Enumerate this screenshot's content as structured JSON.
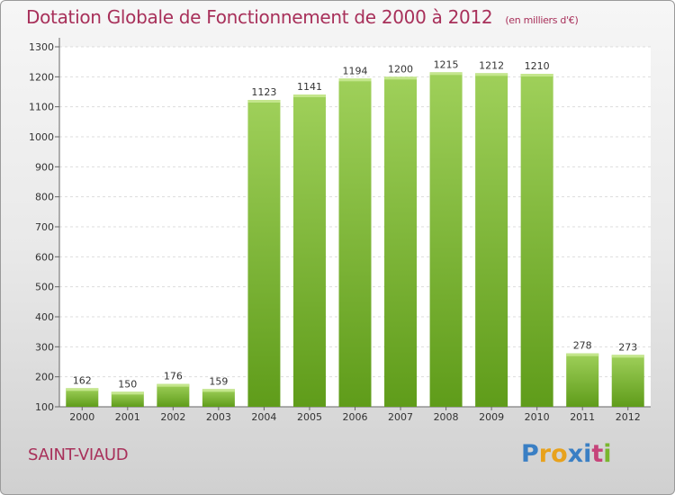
{
  "title": "Dotation Globale de Fonctionnement de 2000 à 2012",
  "unit": "(en milliers d'€)",
  "commune": "SAINT-VIAUD",
  "logo": {
    "text": "Proxiti",
    "colors": [
      "#3a7fc4",
      "#e8a21c",
      "#e8a21c",
      "#3a7fc4",
      "#3a7fc4",
      "#c6447a",
      "#7ab62e"
    ]
  },
  "colors": {
    "title": "#a8305a",
    "bar_top": "#9fd05a",
    "bar_bottom": "#5f9c1a"
  },
  "chart_data": {
    "type": "bar",
    "categories": [
      "2000",
      "2001",
      "2002",
      "2003",
      "2004",
      "2005",
      "2006",
      "2007",
      "2008",
      "2009",
      "2010",
      "2011",
      "2012"
    ],
    "values": [
      162,
      150,
      176,
      159,
      1123,
      1141,
      1194,
      1200,
      1215,
      1212,
      1210,
      278,
      273
    ],
    "title": "Dotation Globale de Fonctionnement de 2000 à 2012",
    "xlabel": "",
    "ylabel": "",
    "ylim": [
      100,
      1300
    ],
    "yticks": [
      100,
      200,
      300,
      400,
      500,
      600,
      700,
      800,
      900,
      1000,
      1100,
      1200,
      1300
    ],
    "grid": true,
    "legend": "none"
  }
}
